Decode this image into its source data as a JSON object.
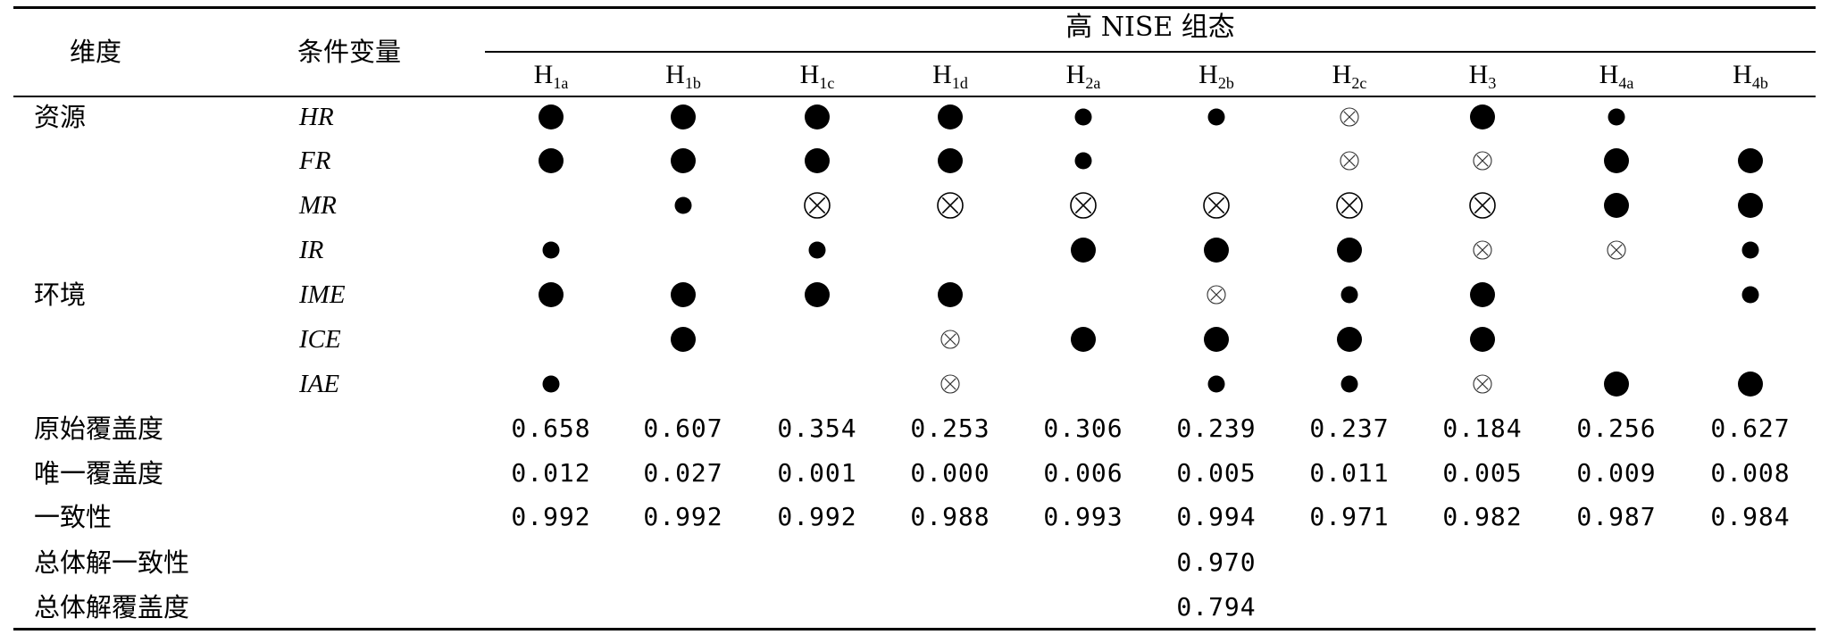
{
  "header": {
    "col_dimension": "维度",
    "col_condition": "条件变量",
    "group_title": "高 NISE 组态",
    "configs": [
      {
        "base": "H",
        "sub": "1a"
      },
      {
        "base": "H",
        "sub": "1b"
      },
      {
        "base": "H",
        "sub": "1c"
      },
      {
        "base": "H",
        "sub": "1d"
      },
      {
        "base": "H",
        "sub": "2a"
      },
      {
        "base": "H",
        "sub": "2b"
      },
      {
        "base": "H",
        "sub": "2c"
      },
      {
        "base": "H",
        "sub": "3"
      },
      {
        "base": "H",
        "sub": "4a"
      },
      {
        "base": "H",
        "sub": "4b"
      }
    ]
  },
  "legend_symbols": {
    "L": "core condition present",
    "s": "peripheral condition present",
    "X": "core condition absent",
    "x": "peripheral condition absent",
    "": "blank"
  },
  "conditions": [
    {
      "dimension": "资源",
      "name": "HR",
      "cells": [
        "L",
        "L",
        "L",
        "L",
        "s",
        "s",
        "x",
        "L",
        "s",
        ""
      ]
    },
    {
      "dimension": "",
      "name": "FR",
      "cells": [
        "L",
        "L",
        "L",
        "L",
        "s",
        "",
        "x",
        "x",
        "L",
        "L"
      ]
    },
    {
      "dimension": "",
      "name": "MR",
      "cells": [
        "",
        "s",
        "X",
        "X",
        "X",
        "X",
        "X",
        "X",
        "L",
        "L"
      ]
    },
    {
      "dimension": "",
      "name": "IR",
      "cells": [
        "s",
        "",
        "s",
        "",
        "L",
        "L",
        "L",
        "x",
        "x",
        "s"
      ]
    },
    {
      "dimension": "环境",
      "name": "IME",
      "cells": [
        "L",
        "L",
        "L",
        "L",
        "",
        "x",
        "s",
        "L",
        "",
        "s"
      ]
    },
    {
      "dimension": "",
      "name": "ICE",
      "cells": [
        "",
        "L",
        "",
        "x",
        "L",
        "L",
        "L",
        "L",
        "",
        ""
      ]
    },
    {
      "dimension": "",
      "name": "IAE",
      "cells": [
        "s",
        "",
        "",
        "x",
        "",
        "s",
        "s",
        "x",
        "L",
        "L"
      ]
    }
  ],
  "metrics": [
    {
      "label": "原始覆盖度",
      "values": [
        "0.658",
        "0.607",
        "0.354",
        "0.253",
        "0.306",
        "0.239",
        "0.237",
        "0.184",
        "0.256",
        "0.627"
      ]
    },
    {
      "label": "唯一覆盖度",
      "values": [
        "0.012",
        "0.027",
        "0.001",
        "0.000",
        "0.006",
        "0.005",
        "0.011",
        "0.005",
        "0.009",
        "0.008"
      ]
    },
    {
      "label": "一致性",
      "values": [
        "0.992",
        "0.992",
        "0.992",
        "0.988",
        "0.993",
        "0.994",
        "0.971",
        "0.982",
        "0.987",
        "0.984"
      ]
    }
  ],
  "overall": [
    {
      "label": "总体解一致性",
      "value": "0.970"
    },
    {
      "label": "总体解覆盖度",
      "value": "0.794"
    }
  ]
}
